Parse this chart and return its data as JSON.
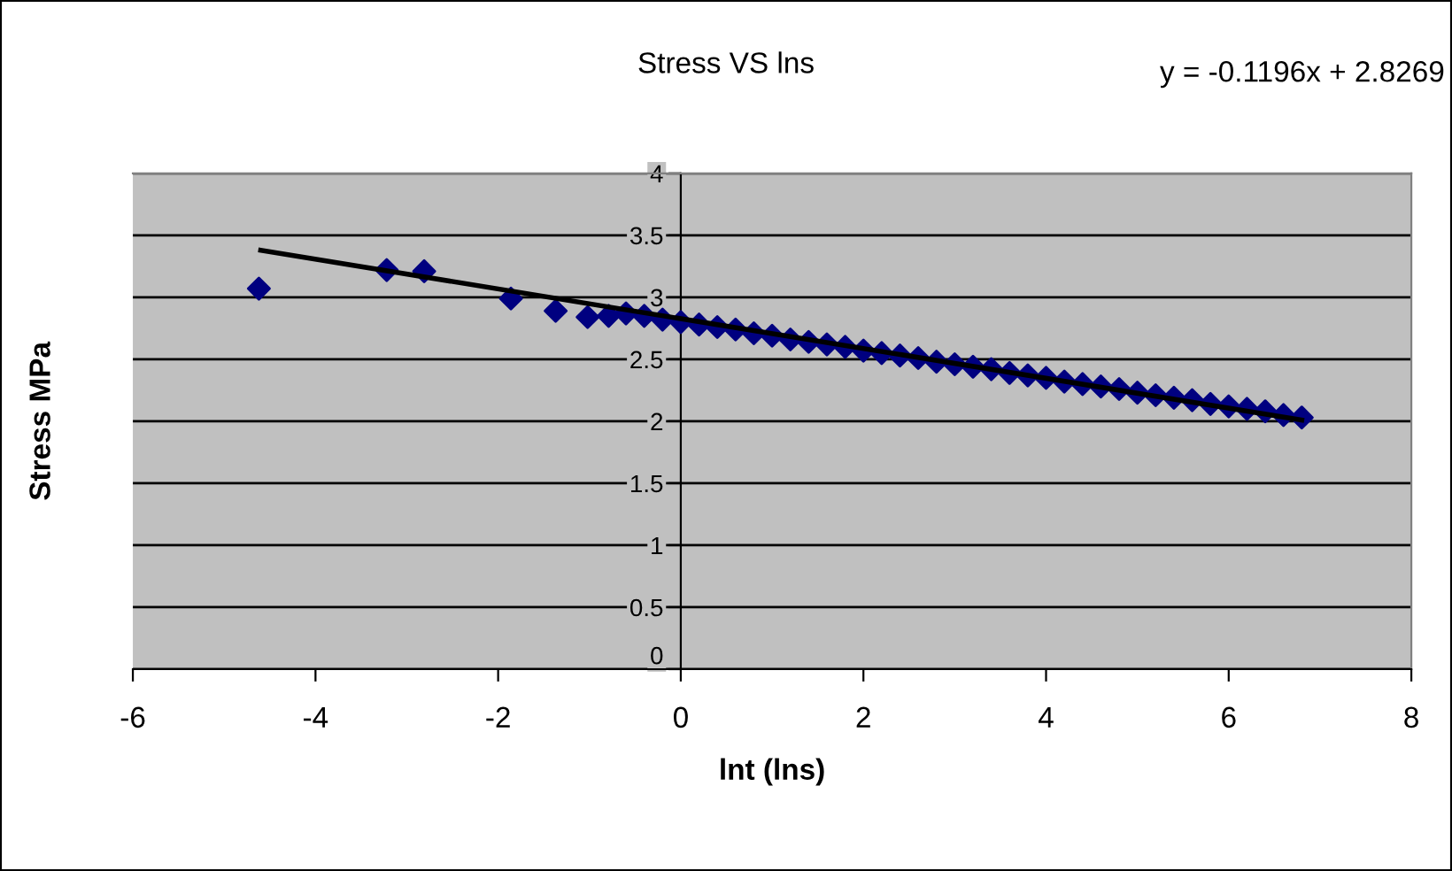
{
  "chart_data": {
    "type": "scatter",
    "title": "Stress VS lns",
    "xlabel": "lnt (lns)",
    "ylabel": "Stress MPa",
    "annotations": [
      "y = -0.1196x + 2.8269"
    ],
    "series": [
      {
        "type": "scatter",
        "color": "#000080",
        "marker": "diamond",
        "x": [
          -4.62,
          -3.22,
          -2.81,
          -1.86,
          -1.37,
          -1.02,
          -0.79,
          -0.6,
          -0.4,
          -0.2,
          0,
          0.2,
          0.4,
          0.6,
          0.8,
          1.0,
          1.2,
          1.4,
          1.6,
          1.8,
          2.0,
          2.2,
          2.4,
          2.6,
          2.8,
          3.0,
          3.2,
          3.4,
          3.6,
          3.8,
          4.0,
          4.2,
          4.4,
          4.6,
          4.8,
          5.0,
          5.2,
          5.4,
          5.6,
          5.8,
          6.0,
          6.2,
          6.4,
          6.6,
          6.8
        ],
        "values": [
          3.07,
          3.22,
          3.21,
          2.99,
          2.89,
          2.84,
          2.85,
          2.87,
          2.85,
          2.82,
          2.8,
          2.78,
          2.76,
          2.74,
          2.71,
          2.69,
          2.66,
          2.64,
          2.62,
          2.6,
          2.57,
          2.55,
          2.53,
          2.51,
          2.48,
          2.46,
          2.44,
          2.42,
          2.39,
          2.37,
          2.35,
          2.32,
          2.3,
          2.28,
          2.26,
          2.23,
          2.21,
          2.19,
          2.17,
          2.14,
          2.12,
          2.1,
          2.08,
          2.05,
          2.03
        ]
      },
      {
        "type": "line",
        "color": "#000000",
        "marker": "none",
        "line_style": "solid",
        "x": [
          -4.6,
          6.8
        ],
        "values": [
          3.38,
          2.01
        ]
      }
    ],
    "xlim": [
      -6,
      8
    ],
    "xticks": [
      -6,
      -4,
      -2,
      0,
      2,
      4,
      6,
      8
    ],
    "ylim": [
      0,
      4
    ],
    "yticks": [
      0,
      0.5,
      1,
      1.5,
      2,
      2.5,
      3,
      3.5,
      4
    ],
    "grid": "y",
    "legend": false
  }
}
